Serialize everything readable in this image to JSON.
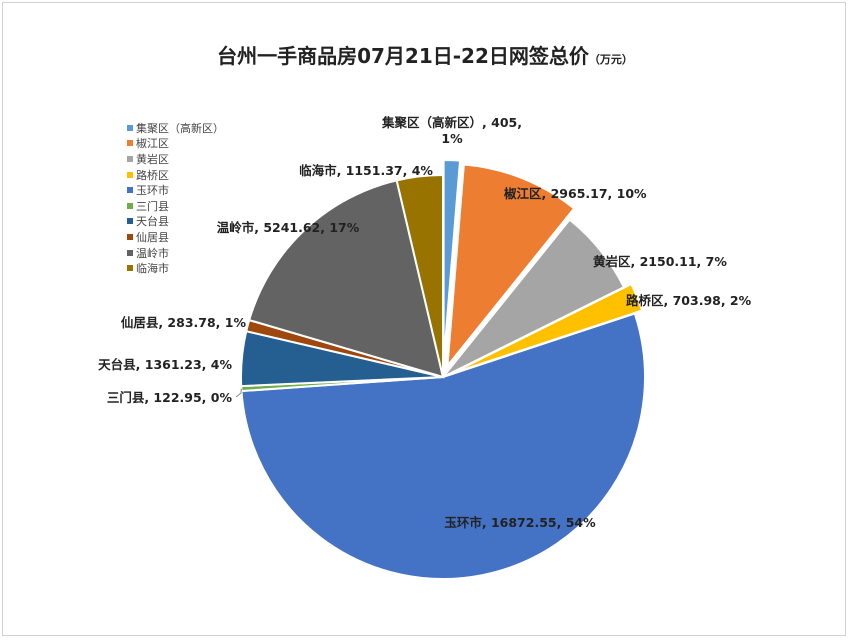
{
  "title": "台州一手商品房07月21日-22日网签总价",
  "unit": "（万元）",
  "chart_data": {
    "type": "pie",
    "title": "台州一手商品房07月21日-22日网签总价",
    "unit": "（万元）",
    "legend_position": "left",
    "slices": [
      {
        "name": "集聚区（高新区）",
        "value": 405,
        "percent": "1%",
        "color": "#5b9bd5",
        "label_lines": [
          "集聚区（高新区）, 405,",
          "1%"
        ]
      },
      {
        "name": "椒江区",
        "value": 2965.17,
        "percent": "10%",
        "color": "#ed7d31",
        "label_lines": [
          "椒江区, 2965.17, 10%"
        ]
      },
      {
        "name": "黄岩区",
        "value": 2150.11,
        "percent": "7%",
        "color": "#a5a5a5",
        "label_lines": [
          "黄岩区, 2150.11, 7%"
        ]
      },
      {
        "name": "路桥区",
        "value": 703.98,
        "percent": "2%",
        "color": "#ffc000",
        "label_lines": [
          "路桥区, 703.98, 2%"
        ]
      },
      {
        "name": "玉环市",
        "value": 16872.55,
        "percent": "54%",
        "color": "#4472c4",
        "label_lines": [
          "玉环市, 16872.55, 54%"
        ]
      },
      {
        "name": "三门县",
        "value": 122.95,
        "percent": "0%",
        "color": "#70ad47",
        "label_lines": [
          "三门县, 122.95, 0%"
        ]
      },
      {
        "name": "天台县",
        "value": 1361.23,
        "percent": "4%",
        "color": "#255e91",
        "label_lines": [
          "天台县, 1361.23, 4%"
        ]
      },
      {
        "name": "仙居县",
        "value": 283.78,
        "percent": "1%",
        "color": "#9e480e",
        "label_lines": [
          "仙居县, 283.78, 1%"
        ]
      },
      {
        "name": "温岭市",
        "value": 5241.62,
        "percent": "17%",
        "color": "#636363",
        "label_lines": [
          "温岭市, 5241.62, 17%"
        ]
      },
      {
        "name": "临海市",
        "value": 1151.37,
        "percent": "4%",
        "color": "#997300",
        "label_lines": [
          "临海市, 1151.37, 4%"
        ]
      }
    ]
  }
}
